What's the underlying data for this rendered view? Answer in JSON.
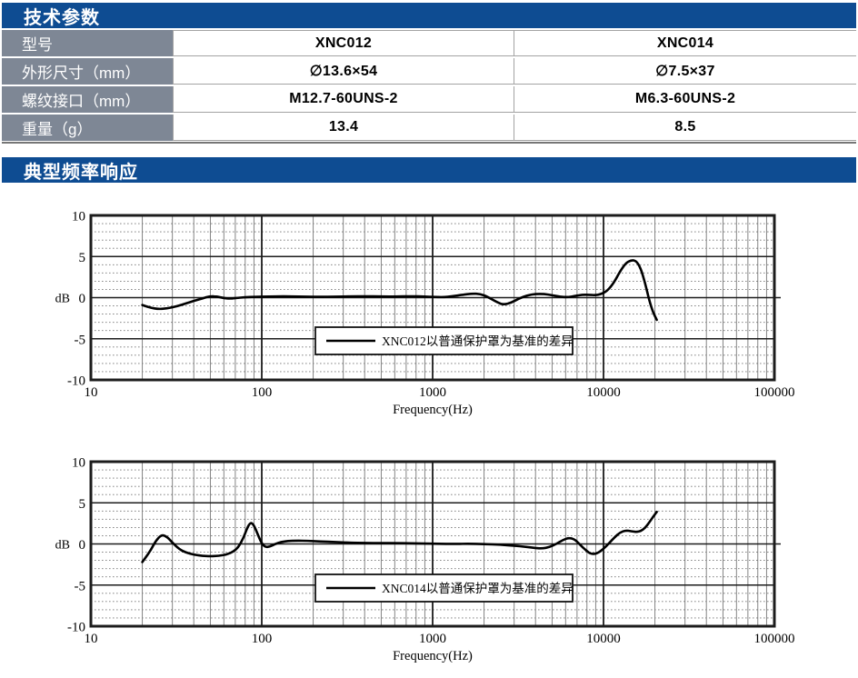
{
  "colors": {
    "header_bar": "#0e4c92",
    "label_cell": "#7e8795",
    "table_border": "#a3a3a3",
    "curve": "#000000",
    "grid_major": "#1c1c1c",
    "grid_minor": "#777777"
  },
  "section1": {
    "title": "技术参数"
  },
  "section2": {
    "title": "典型频率响应"
  },
  "table": {
    "rows": [
      {
        "label": "型号",
        "xnc012": "XNC012",
        "xnc014": "XNC014"
      },
      {
        "label": "外形尺寸（mm）",
        "xnc012": "∅13.6×54",
        "xnc014": "∅7.5×37"
      },
      {
        "label": "螺纹接口（mm）",
        "xnc012": "M12.7-60UNS-2",
        "xnc014": "M6.3-60UNS-2"
      },
      {
        "label": "重量（g）",
        "xnc012": "13.4",
        "xnc014": "8.5"
      }
    ]
  },
  "chart_data": [
    {
      "type": "line",
      "title": "",
      "xlabel": "Frequency(Hz)",
      "ylabel": "dB",
      "x_scale": "log",
      "xlim": [
        10,
        100000
      ],
      "ylim": [
        -10,
        10
      ],
      "xticks": [
        10,
        100,
        1000,
        10000,
        100000
      ],
      "yticks": [
        10,
        5,
        0,
        -5,
        -10
      ],
      "grid": "major and 1dB/log minor grid on",
      "legend": "XNC012以普通保护罩为基准的差异",
      "legend_position": "inside bottom-center",
      "points": [
        [
          20,
          -0.9
        ],
        [
          22,
          -1.2
        ],
        [
          25,
          -1.4
        ],
        [
          28,
          -1.3
        ],
        [
          32,
          -1.05
        ],
        [
          36,
          -0.7
        ],
        [
          40,
          -0.4
        ],
        [
          45,
          -0.1
        ],
        [
          50,
          0.2
        ],
        [
          55,
          0.12
        ],
        [
          60,
          -0.05
        ],
        [
          65,
          -0.12
        ],
        [
          70,
          -0.05
        ],
        [
          80,
          0.05
        ],
        [
          90,
          0.1
        ],
        [
          100,
          0.12
        ],
        [
          120,
          0.15
        ],
        [
          150,
          0.15
        ],
        [
          180,
          0.12
        ],
        [
          220,
          0.1
        ],
        [
          270,
          0.12
        ],
        [
          330,
          0.15
        ],
        [
          400,
          0.15
        ],
        [
          500,
          0.15
        ],
        [
          620,
          0.12
        ],
        [
          750,
          0.18
        ],
        [
          900,
          0.12
        ],
        [
          1000,
          0.1
        ],
        [
          1150,
          0.05
        ],
        [
          1300,
          0.15
        ],
        [
          1500,
          0.35
        ],
        [
          1700,
          0.5
        ],
        [
          1900,
          0.45
        ],
        [
          2100,
          0.1
        ],
        [
          2400,
          -0.6
        ],
        [
          2600,
          -0.85
        ],
        [
          2900,
          -0.6
        ],
        [
          3200,
          -0.1
        ],
        [
          3600,
          0.3
        ],
        [
          4000,
          0.45
        ],
        [
          4500,
          0.45
        ],
        [
          5000,
          0.3
        ],
        [
          5600,
          0.1
        ],
        [
          6200,
          0.05
        ],
        [
          6800,
          0.2
        ],
        [
          7500,
          0.35
        ],
        [
          8200,
          0.35
        ],
        [
          9000,
          0.3
        ],
        [
          9600,
          0.4
        ],
        [
          10500,
          0.8
        ],
        [
          11500,
          1.8
        ],
        [
          12500,
          3.2
        ],
        [
          13500,
          4.2
        ],
        [
          14500,
          4.55
        ],
        [
          15500,
          4.5
        ],
        [
          16500,
          3.6
        ],
        [
          17500,
          1.8
        ],
        [
          18500,
          -0.3
        ],
        [
          19500,
          -1.8
        ],
        [
          20500,
          -2.7
        ]
      ]
    },
    {
      "type": "line",
      "title": "",
      "xlabel": "Frequency(Hz)",
      "ylabel": "dB",
      "x_scale": "log",
      "xlim": [
        10,
        100000
      ],
      "ylim": [
        -10,
        10
      ],
      "xticks": [
        10,
        100,
        1000,
        10000,
        100000
      ],
      "yticks": [
        10,
        5,
        0,
        -5,
        -10
      ],
      "grid": "major and 1dB/log minor grid on",
      "legend": "XNC014以普通保护罩为基准的差异",
      "legend_position": "inside bottom-center",
      "points": [
        [
          20,
          -2.2
        ],
        [
          21,
          -1.6
        ],
        [
          22.5,
          -0.7
        ],
        [
          24,
          0.4
        ],
        [
          26,
          1.15
        ],
        [
          28,
          0.85
        ],
        [
          30,
          0.15
        ],
        [
          33,
          -0.65
        ],
        [
          36,
          -1.05
        ],
        [
          40,
          -1.3
        ],
        [
          45,
          -1.45
        ],
        [
          50,
          -1.5
        ],
        [
          56,
          -1.45
        ],
        [
          62,
          -1.3
        ],
        [
          68,
          -0.95
        ],
        [
          73,
          -0.4
        ],
        [
          78,
          0.7
        ],
        [
          82,
          1.9
        ],
        [
          86,
          2.65
        ],
        [
          90,
          2.3
        ],
        [
          95,
          1.1
        ],
        [
          100,
          0.05
        ],
        [
          105,
          -0.4
        ],
        [
          112,
          -0.3
        ],
        [
          120,
          0.0
        ],
        [
          130,
          0.25
        ],
        [
          142,
          0.35
        ],
        [
          160,
          0.4
        ],
        [
          185,
          0.38
        ],
        [
          220,
          0.3
        ],
        [
          270,
          0.22
        ],
        [
          330,
          0.15
        ],
        [
          400,
          0.12
        ],
        [
          500,
          0.1
        ],
        [
          620,
          0.1
        ],
        [
          750,
          0.08
        ],
        [
          900,
          0.05
        ],
        [
          1100,
          0.02
        ],
        [
          1300,
          0.0
        ],
        [
          1600,
          0.02
        ],
        [
          2000,
          0.0
        ],
        [
          2500,
          -0.1
        ],
        [
          3000,
          -0.2
        ],
        [
          3500,
          -0.35
        ],
        [
          4000,
          -0.5
        ],
        [
          4400,
          -0.55
        ],
        [
          4800,
          -0.4
        ],
        [
          5300,
          0.0
        ],
        [
          5800,
          0.5
        ],
        [
          6300,
          0.75
        ],
        [
          6800,
          0.55
        ],
        [
          7300,
          -0.1
        ],
        [
          7900,
          -0.8
        ],
        [
          8500,
          -1.25
        ],
        [
          9200,
          -1.15
        ],
        [
          10000,
          -0.6
        ],
        [
          10800,
          0.1
        ],
        [
          11600,
          0.8
        ],
        [
          12500,
          1.4
        ],
        [
          13500,
          1.65
        ],
        [
          14500,
          1.55
        ],
        [
          15500,
          1.45
        ],
        [
          16500,
          1.55
        ],
        [
          17500,
          1.95
        ],
        [
          18500,
          2.6
        ],
        [
          19500,
          3.3
        ],
        [
          20500,
          3.9
        ]
      ]
    }
  ]
}
